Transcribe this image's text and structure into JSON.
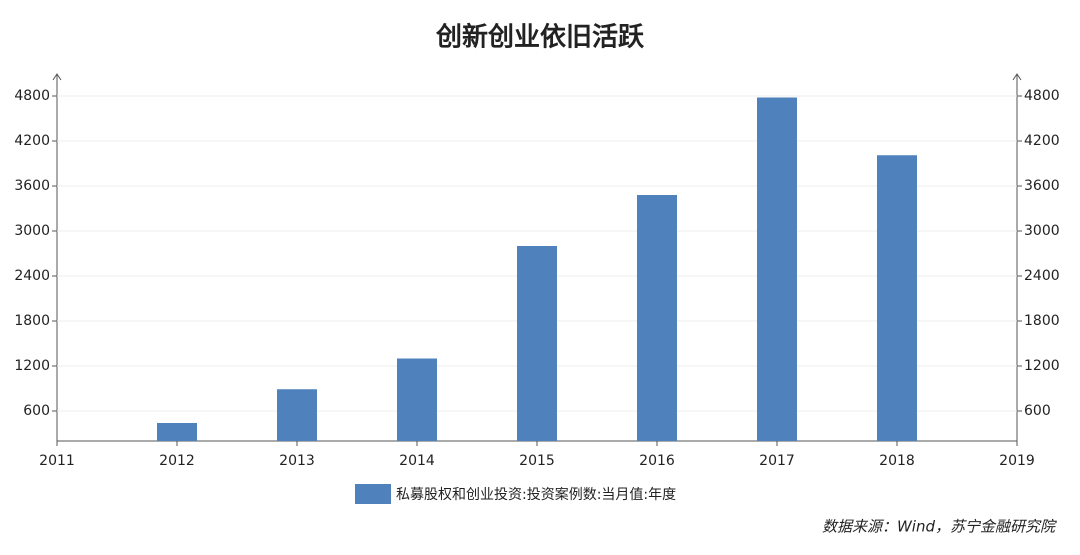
{
  "chart_data": {
    "type": "bar",
    "title": "创新创业依旧活跃",
    "title_color": "#800080",
    "x": [
      2012,
      2013,
      2014,
      2015,
      2016,
      2017,
      2018
    ],
    "xlim": [
      2011,
      2019
    ],
    "xticks": [
      2011,
      2012,
      2013,
      2014,
      2015,
      2016,
      2017,
      2018,
      2019
    ],
    "series": [
      {
        "name": "私募股权和创业投资:投资案例数:当月值:年度",
        "color": "#4f81bd",
        "values": [
          440,
          890,
          1300,
          2800,
          3480,
          4780,
          4010
        ]
      }
    ],
    "ylim": [
      200,
      5080
    ],
    "yticks": [
      600,
      1200,
      1800,
      2400,
      3000,
      3600,
      4200,
      4800
    ],
    "y2lim": [
      200,
      5080
    ],
    "y2ticks": [
      600,
      1200,
      1800,
      2400,
      3000,
      3600,
      4200,
      4800
    ],
    "grid": true,
    "source": "数据来源：Wind，苏宁金融研究院",
    "source_color": "#e0302a"
  }
}
